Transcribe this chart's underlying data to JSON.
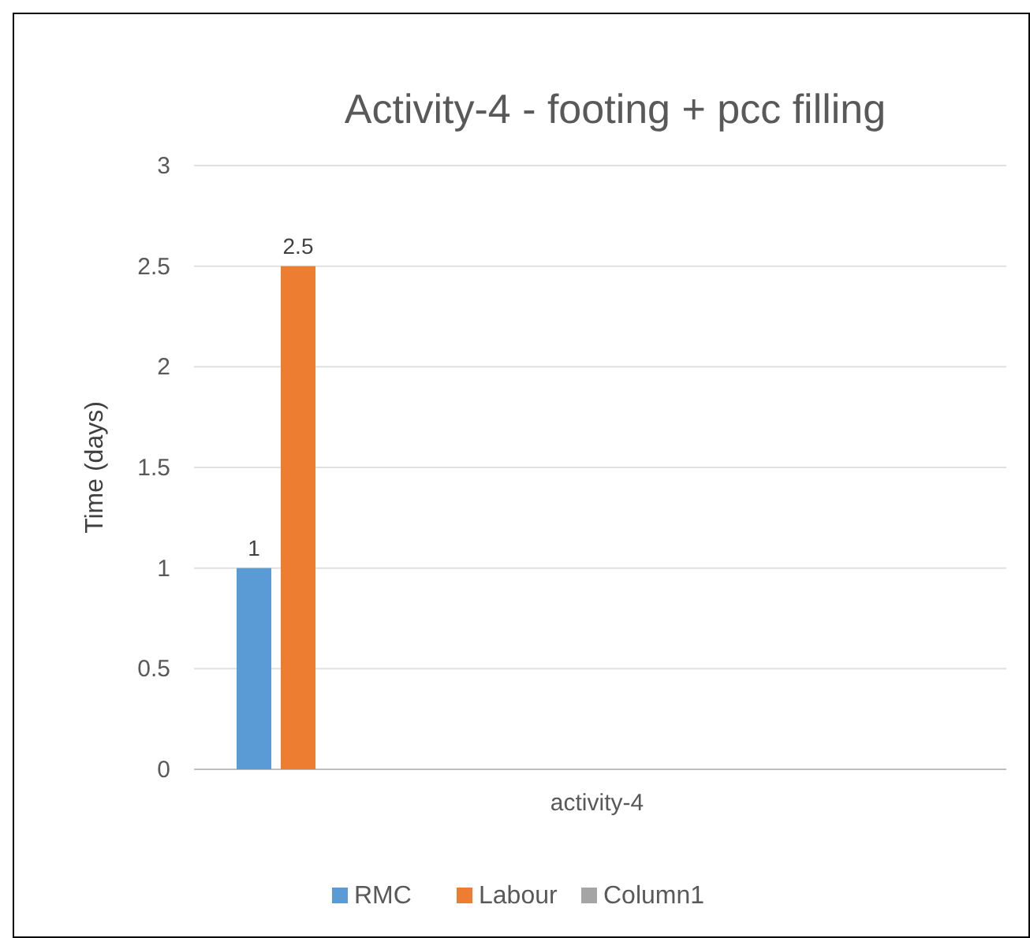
{
  "chart_data": {
    "type": "bar",
    "title": "Activity-4 - footing + pcc filling",
    "ylabel": "Time (days)",
    "categories": [
      "activity-4"
    ],
    "series": [
      {
        "name": "RMC",
        "color": "#5b9bd5",
        "values": [
          1
        ]
      },
      {
        "name": "Labour",
        "color": "#ed7d31",
        "values": [
          2.5
        ]
      },
      {
        "name": "Column1",
        "color": "#a5a5a5",
        "values": [
          null
        ]
      }
    ],
    "ylim": [
      0,
      3
    ],
    "yticks": [
      0,
      0.5,
      1,
      1.5,
      2,
      2.5,
      3
    ],
    "grid": "y",
    "data_labels": true,
    "legend": "bottom"
  }
}
